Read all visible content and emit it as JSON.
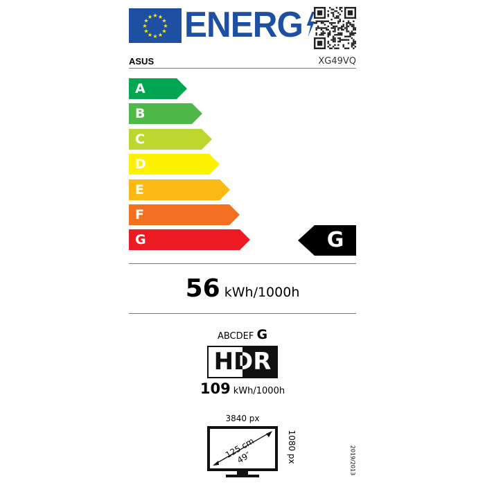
{
  "header": {
    "logo_text": "ENERG",
    "brand": "ASUS",
    "model": "XG49VQ"
  },
  "scale": {
    "classes": [
      {
        "letter": "A",
        "color": "#00a651"
      },
      {
        "letter": "B",
        "color": "#50b848"
      },
      {
        "letter": "C",
        "color": "#bed630"
      },
      {
        "letter": "D",
        "color": "#fff200"
      },
      {
        "letter": "E",
        "color": "#fdb913"
      },
      {
        "letter": "F",
        "color": "#f37021"
      },
      {
        "letter": "G",
        "color": "#ed1c24"
      }
    ],
    "rating": "G"
  },
  "sdr_consumption": {
    "value": "56",
    "unit": "kWh/1000h"
  },
  "hdr": {
    "scale_prefix": "ABCDEF",
    "rating": "G",
    "label": "HDR",
    "value": "109",
    "unit": "kWh/1000h"
  },
  "screen": {
    "width_px": "3840 px",
    "height_px": "1080 px",
    "diagonal_cm": "125 cm",
    "diagonal_in": "49″"
  },
  "regulation": "2019/2013"
}
